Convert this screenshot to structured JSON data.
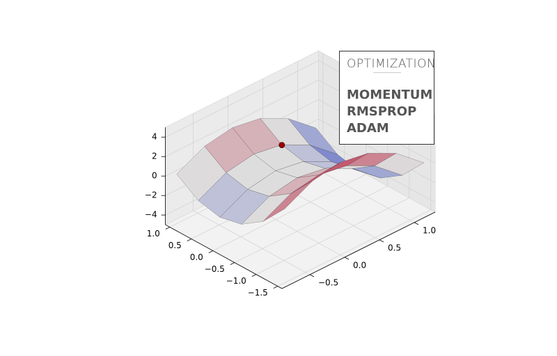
{
  "chart_data": {
    "type": "surface",
    "x": [
      -1.5,
      -1,
      -0.5,
      0,
      0.5,
      1
    ],
    "y": [
      -0.8,
      -0.4,
      0,
      0.4,
      0.8,
      1.2
    ],
    "z": [
      [
        2.58,
        4.02,
        4.5,
        4.02,
        2.58,
        0.18
      ],
      [
        0.08,
        1.52,
        2,
        1.52,
        0.08,
        -2.32
      ],
      [
        -1.42,
        0.02,
        0.5,
        0.02,
        -1.42,
        -3.82
      ],
      [
        -1.92,
        -0.48,
        0,
        -0.48,
        -1.92,
        -4.32
      ],
      [
        -1.42,
        0.02,
        0.5,
        0.02,
        -1.42,
        -3.82
      ],
      [
        0.08,
        1.52,
        2,
        1.52,
        0.08,
        -2.32
      ]
    ],
    "colormap": [
      "#3b4cc0",
      "#dddddd",
      "#b40426"
    ],
    "point": {
      "x": 0.5,
      "y": 0.4,
      "z": 0,
      "color": "#a00000"
    },
    "xlim": [
      -1.6,
      1.1
    ],
    "ylim": [
      -0.9,
      1.3
    ],
    "zlim": [
      -5,
      5
    ],
    "xticks": [
      {
        "value": 1,
        "label": "1.0"
      },
      {
        "value": 0.5,
        "label": "0.5"
      },
      {
        "value": 0,
        "label": "0.0"
      },
      {
        "value": -0.5,
        "label": "−0.5"
      },
      {
        "value": -1,
        "label": "−1.0"
      },
      {
        "value": -1.5,
        "label": "−1.5"
      }
    ],
    "yticks": [
      {
        "value": 1,
        "label": "1.0"
      },
      {
        "value": 0.5,
        "label": "0.5"
      },
      {
        "value": 0,
        "label": "0.0"
      },
      {
        "value": -0.5,
        "label": "−0.5"
      }
    ],
    "zticks": [
      4,
      2,
      0,
      {
        "value": -2,
        "label": "−2"
      },
      {
        "value": -4,
        "label": "−4"
      }
    ],
    "grid": true
  },
  "panel": {
    "title": "OPTIMIZATION",
    "items": [
      "MOMENTUM",
      "RMSPROP",
      "ADAM"
    ]
  }
}
